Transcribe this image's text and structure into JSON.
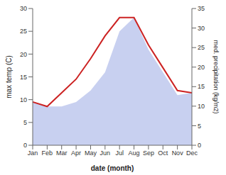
{
  "chart_data": {
    "type": "line",
    "categories": [
      "Jan",
      "Feb",
      "Mar",
      "Apr",
      "May",
      "Jun",
      "Jul",
      "Aug",
      "Sep",
      "Oct",
      "Nov",
      "Dec"
    ],
    "series": [
      {
        "type": "area",
        "color": "#c8d0f0",
        "values": [
          9.5,
          8.5,
          8.5,
          9.5,
          12.0,
          16.0,
          25.0,
          28.0,
          21.0,
          16.0,
          11.0,
          11.5
        ]
      },
      {
        "type": "line",
        "color": "#cc2222",
        "values": [
          9.5,
          8.5,
          11.5,
          14.5,
          19.0,
          24.0,
          28.0,
          28.0,
          22.0,
          17.0,
          12.0,
          11.5
        ]
      }
    ],
    "ylim": [
      0,
      30
    ],
    "yticks": [
      0,
      5,
      10,
      15,
      20,
      25,
      30
    ],
    "y2lim": [
      0,
      35
    ],
    "y2ticks": [
      0,
      5,
      10,
      15,
      20,
      25,
      30,
      35
    ],
    "ylabel": "max temp (C)",
    "y2label": "med. precipitation (kg/m2)",
    "xlabel": "date (month)",
    "grid": false
  }
}
